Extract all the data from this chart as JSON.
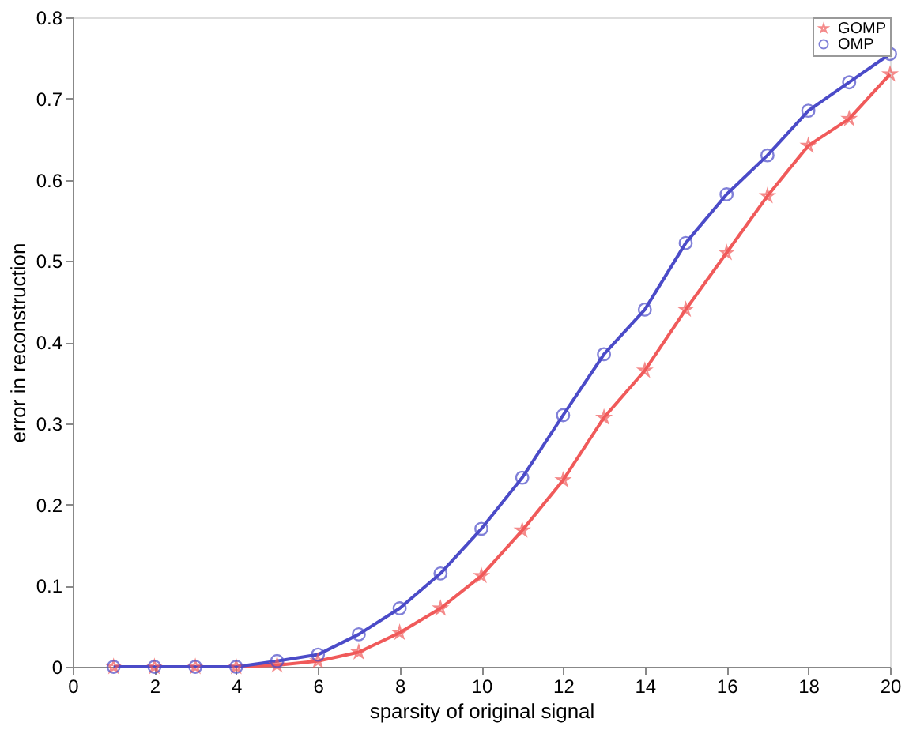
{
  "chart_data": {
    "type": "line",
    "xlabel": "sparsity of original signal",
    "ylabel": "error in reconstruction",
    "x": [
      1,
      2,
      3,
      4,
      5,
      6,
      7,
      8,
      9,
      10,
      11,
      12,
      13,
      14,
      15,
      16,
      17,
      18,
      19,
      20
    ],
    "series": [
      {
        "name": "GOMP",
        "color": "#f05a5a",
        "marker": "star",
        "values": [
          0,
          0,
          0,
          0,
          0.002,
          0.007,
          0.018,
          0.042,
          0.072,
          0.112,
          0.168,
          0.23,
          0.307,
          0.365,
          0.44,
          0.51,
          0.58,
          0.642,
          0.675,
          0.73
        ]
      },
      {
        "name": "OMP",
        "color": "#4b4bc8",
        "marker": "circle",
        "values": [
          0,
          0,
          0,
          0,
          0.007,
          0.015,
          0.04,
          0.072,
          0.115,
          0.17,
          0.233,
          0.31,
          0.385,
          0.44,
          0.522,
          0.582,
          0.63,
          0.685,
          0.72,
          0.755
        ]
      }
    ],
    "xlim": [
      0,
      20
    ],
    "xticks": [
      0,
      2,
      4,
      6,
      8,
      10,
      12,
      14,
      16,
      18,
      20
    ],
    "ylim": [
      0,
      0.8
    ],
    "yticks": [
      0,
      0.1,
      0.2,
      0.3,
      0.4,
      0.5,
      0.6,
      0.7,
      0.8
    ],
    "grid": false,
    "legend": "top right",
    "line_style": "solid"
  }
}
